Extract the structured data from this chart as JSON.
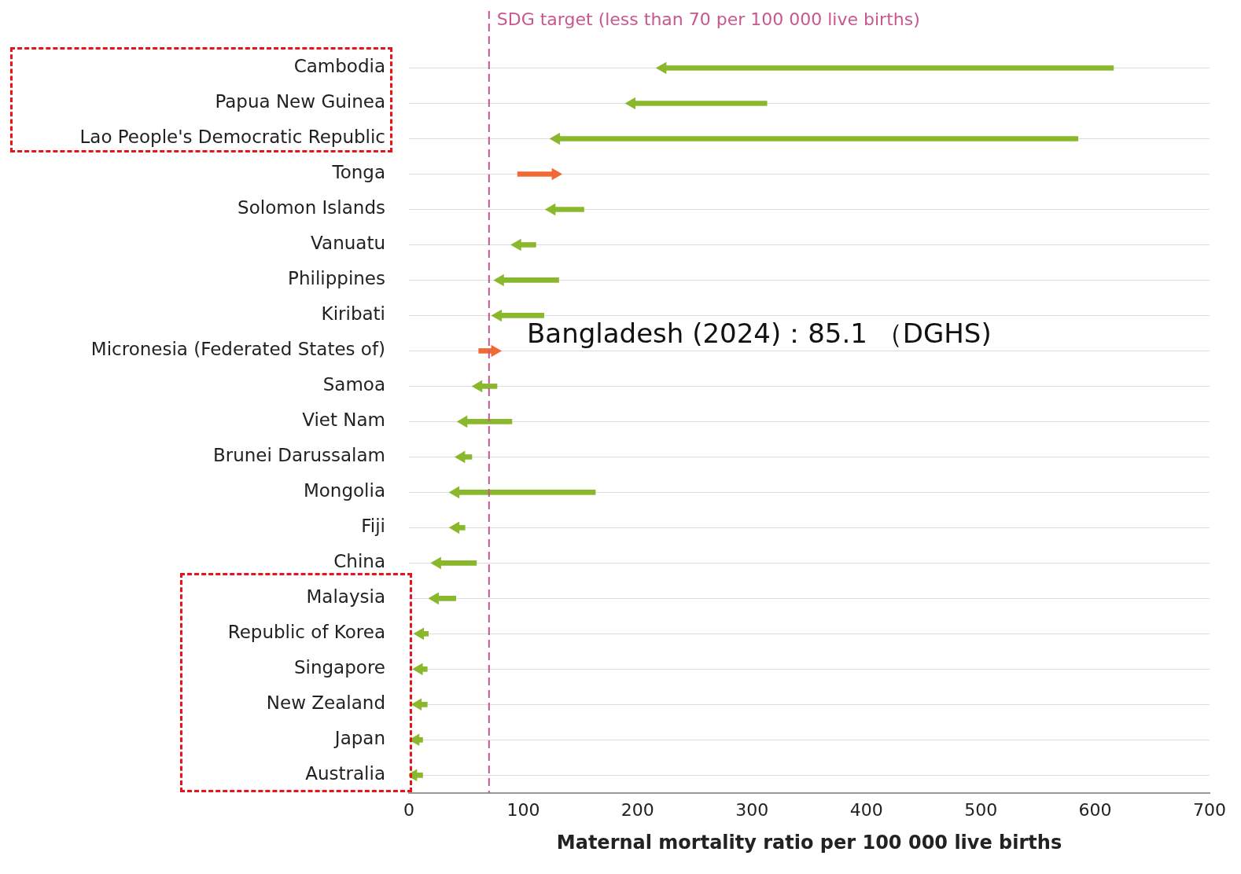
{
  "chart_data": {
    "type": "bar",
    "orientation": "horizontal",
    "categories": [
      "Cambodia",
      "Papua New Guinea",
      "Lao People's Democratic Republic",
      "Tonga",
      "Solomon Islands",
      "Vanuatu",
      "Philippines",
      "Kiribati",
      "Micronesia (Federated States of)",
      "Samoa",
      "Viet Nam",
      "Brunei Darussalam",
      "Mongolia",
      "Fiji",
      "China",
      "Malaysia",
      "Republic of Korea",
      "Singapore",
      "New Zealand",
      "Japan",
      "Australia"
    ],
    "series": [
      {
        "type": "bar",
        "base": [
          616,
          313,
          585,
          95,
          153,
          111,
          131,
          118,
          61,
          77,
          90,
          55,
          163,
          49,
          59,
          41,
          17,
          16,
          16,
          12,
          12
        ],
        "values": [
          -394,
          -118,
          -456,
          33,
          -28,
          -16,
          -51,
          -40,
          14,
          -16,
          -42,
          -9,
          -122,
          -8,
          -34,
          -18,
          -7,
          -7,
          -8,
          -6,
          -8
        ],
        "colors": [
          "#8ab82c",
          "#8ab82c",
          "#8ab82c",
          "#f06a35",
          "#8ab82c",
          "#8ab82c",
          "#8ab82c",
          "#8ab82c",
          "#f06a35",
          "#8ab82c",
          "#8ab82c",
          "#8ab82c",
          "#8ab82c",
          "#8ab82c",
          "#8ab82c",
          "#8ab82c",
          "#8ab82c",
          "#8ab82c",
          "#8ab82c",
          "#8ab82c",
          "#8ab82c"
        ]
      },
      {
        "type": "scatter",
        "marker": "triangle",
        "values": [
          222,
          195,
          129,
          128,
          125,
          95,
          80,
          78,
          75,
          61,
          48,
          46,
          41,
          41,
          25,
          23,
          10,
          9,
          8,
          6,
          4
        ],
        "colors": [
          "#8ab82c",
          "#8ab82c",
          "#8ab82c",
          "#f06a35",
          "#8ab82c",
          "#8ab82c",
          "#8ab82c",
          "#8ab82c",
          "#f06a35",
          "#8ab82c",
          "#8ab82c",
          "#8ab82c",
          "#8ab82c",
          "#8ab82c",
          "#8ab82c",
          "#8ab82c",
          "#8ab82c",
          "#8ab82c",
          "#8ab82c",
          "#8ab82c",
          "#8ab82c"
        ]
      }
    ],
    "xlim": [
      0,
      700
    ],
    "xticks": [
      0,
      100,
      200,
      300,
      400,
      500,
      600,
      700
    ],
    "xlabel": "Maternal mortality ratio per 100 000 live births",
    "ref_lines": [
      {
        "axis": "x",
        "value": 70,
        "label": "SDG target (less than 70 per 100 000 live births)",
        "color": "#c8578f",
        "line_style": "dashed"
      }
    ],
    "annotations": [
      "Bangladesh (2024)：85.1 （DGHS)"
    ],
    "grid": "y",
    "legend": false
  }
}
